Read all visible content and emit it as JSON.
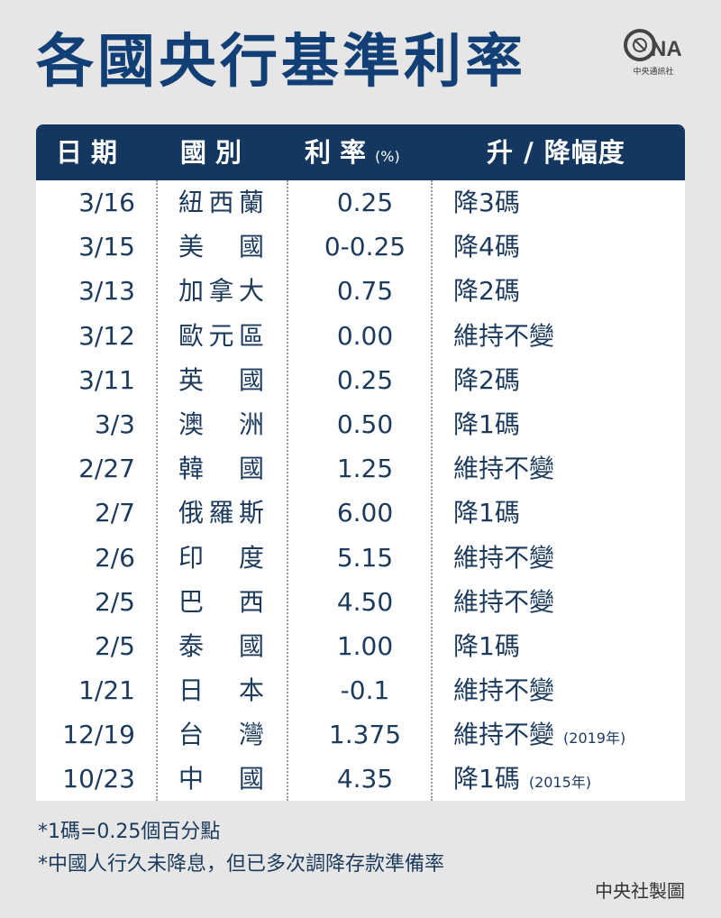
{
  "title": "各國央行基準利率",
  "logo": {
    "brand": "CNA",
    "sub": "中央通訊社"
  },
  "table": {
    "headers": {
      "date": "日期",
      "country": "國別",
      "rate": "利率",
      "rate_unit": "(%)",
      "change": "升 / 降幅度"
    },
    "rows": [
      {
        "date": "3/16",
        "country": "紐西蘭",
        "rate": "0.25",
        "change": "降3碼",
        "note": ""
      },
      {
        "date": "3/15",
        "country": "美國",
        "rate": "0-0.25",
        "change": "降4碼",
        "note": ""
      },
      {
        "date": "3/13",
        "country": "加拿大",
        "rate": "0.75",
        "change": "降2碼",
        "note": ""
      },
      {
        "date": "3/12",
        "country": "歐元區",
        "rate": "0.00",
        "change": "維持不變",
        "note": ""
      },
      {
        "date": "3/11",
        "country": "英國",
        "rate": "0.25",
        "change": "降2碼",
        "note": ""
      },
      {
        "date": "3/3",
        "country": "澳洲",
        "rate": "0.50",
        "change": "降1碼",
        "note": ""
      },
      {
        "date": "2/27",
        "country": "韓國",
        "rate": "1.25",
        "change": "維持不變",
        "note": ""
      },
      {
        "date": "2/7",
        "country": "俄羅斯",
        "rate": "6.00",
        "change": "降1碼",
        "note": ""
      },
      {
        "date": "2/6",
        "country": "印度",
        "rate": "5.15",
        "change": "維持不變",
        "note": ""
      },
      {
        "date": "2/5",
        "country": "巴西",
        "rate": "4.50",
        "change": "維持不變",
        "note": ""
      },
      {
        "date": "2/5",
        "country": "泰國",
        "rate": "1.00",
        "change": "降1碼",
        "note": ""
      },
      {
        "date": "1/21",
        "country": "日本",
        "rate": "-0.1",
        "change": "維持不變",
        "note": ""
      },
      {
        "date": "12/19",
        "country": "台灣",
        "rate": "1.375",
        "change": "維持不變",
        "note": "(2019年)"
      },
      {
        "date": "10/23",
        "country": "中國",
        "rate": "4.35",
        "change": "降1碼",
        "note": "(2015年)"
      }
    ]
  },
  "footnotes": [
    "*1碼=0.25個百分點",
    "*中國人行久未降息，但已多次調降存款準備率"
  ],
  "credit": "中央社製圖",
  "colors": {
    "title": "#123f75",
    "header_bg": "#143760",
    "text": "#1b3a5c",
    "background": "#e6e6e6"
  }
}
